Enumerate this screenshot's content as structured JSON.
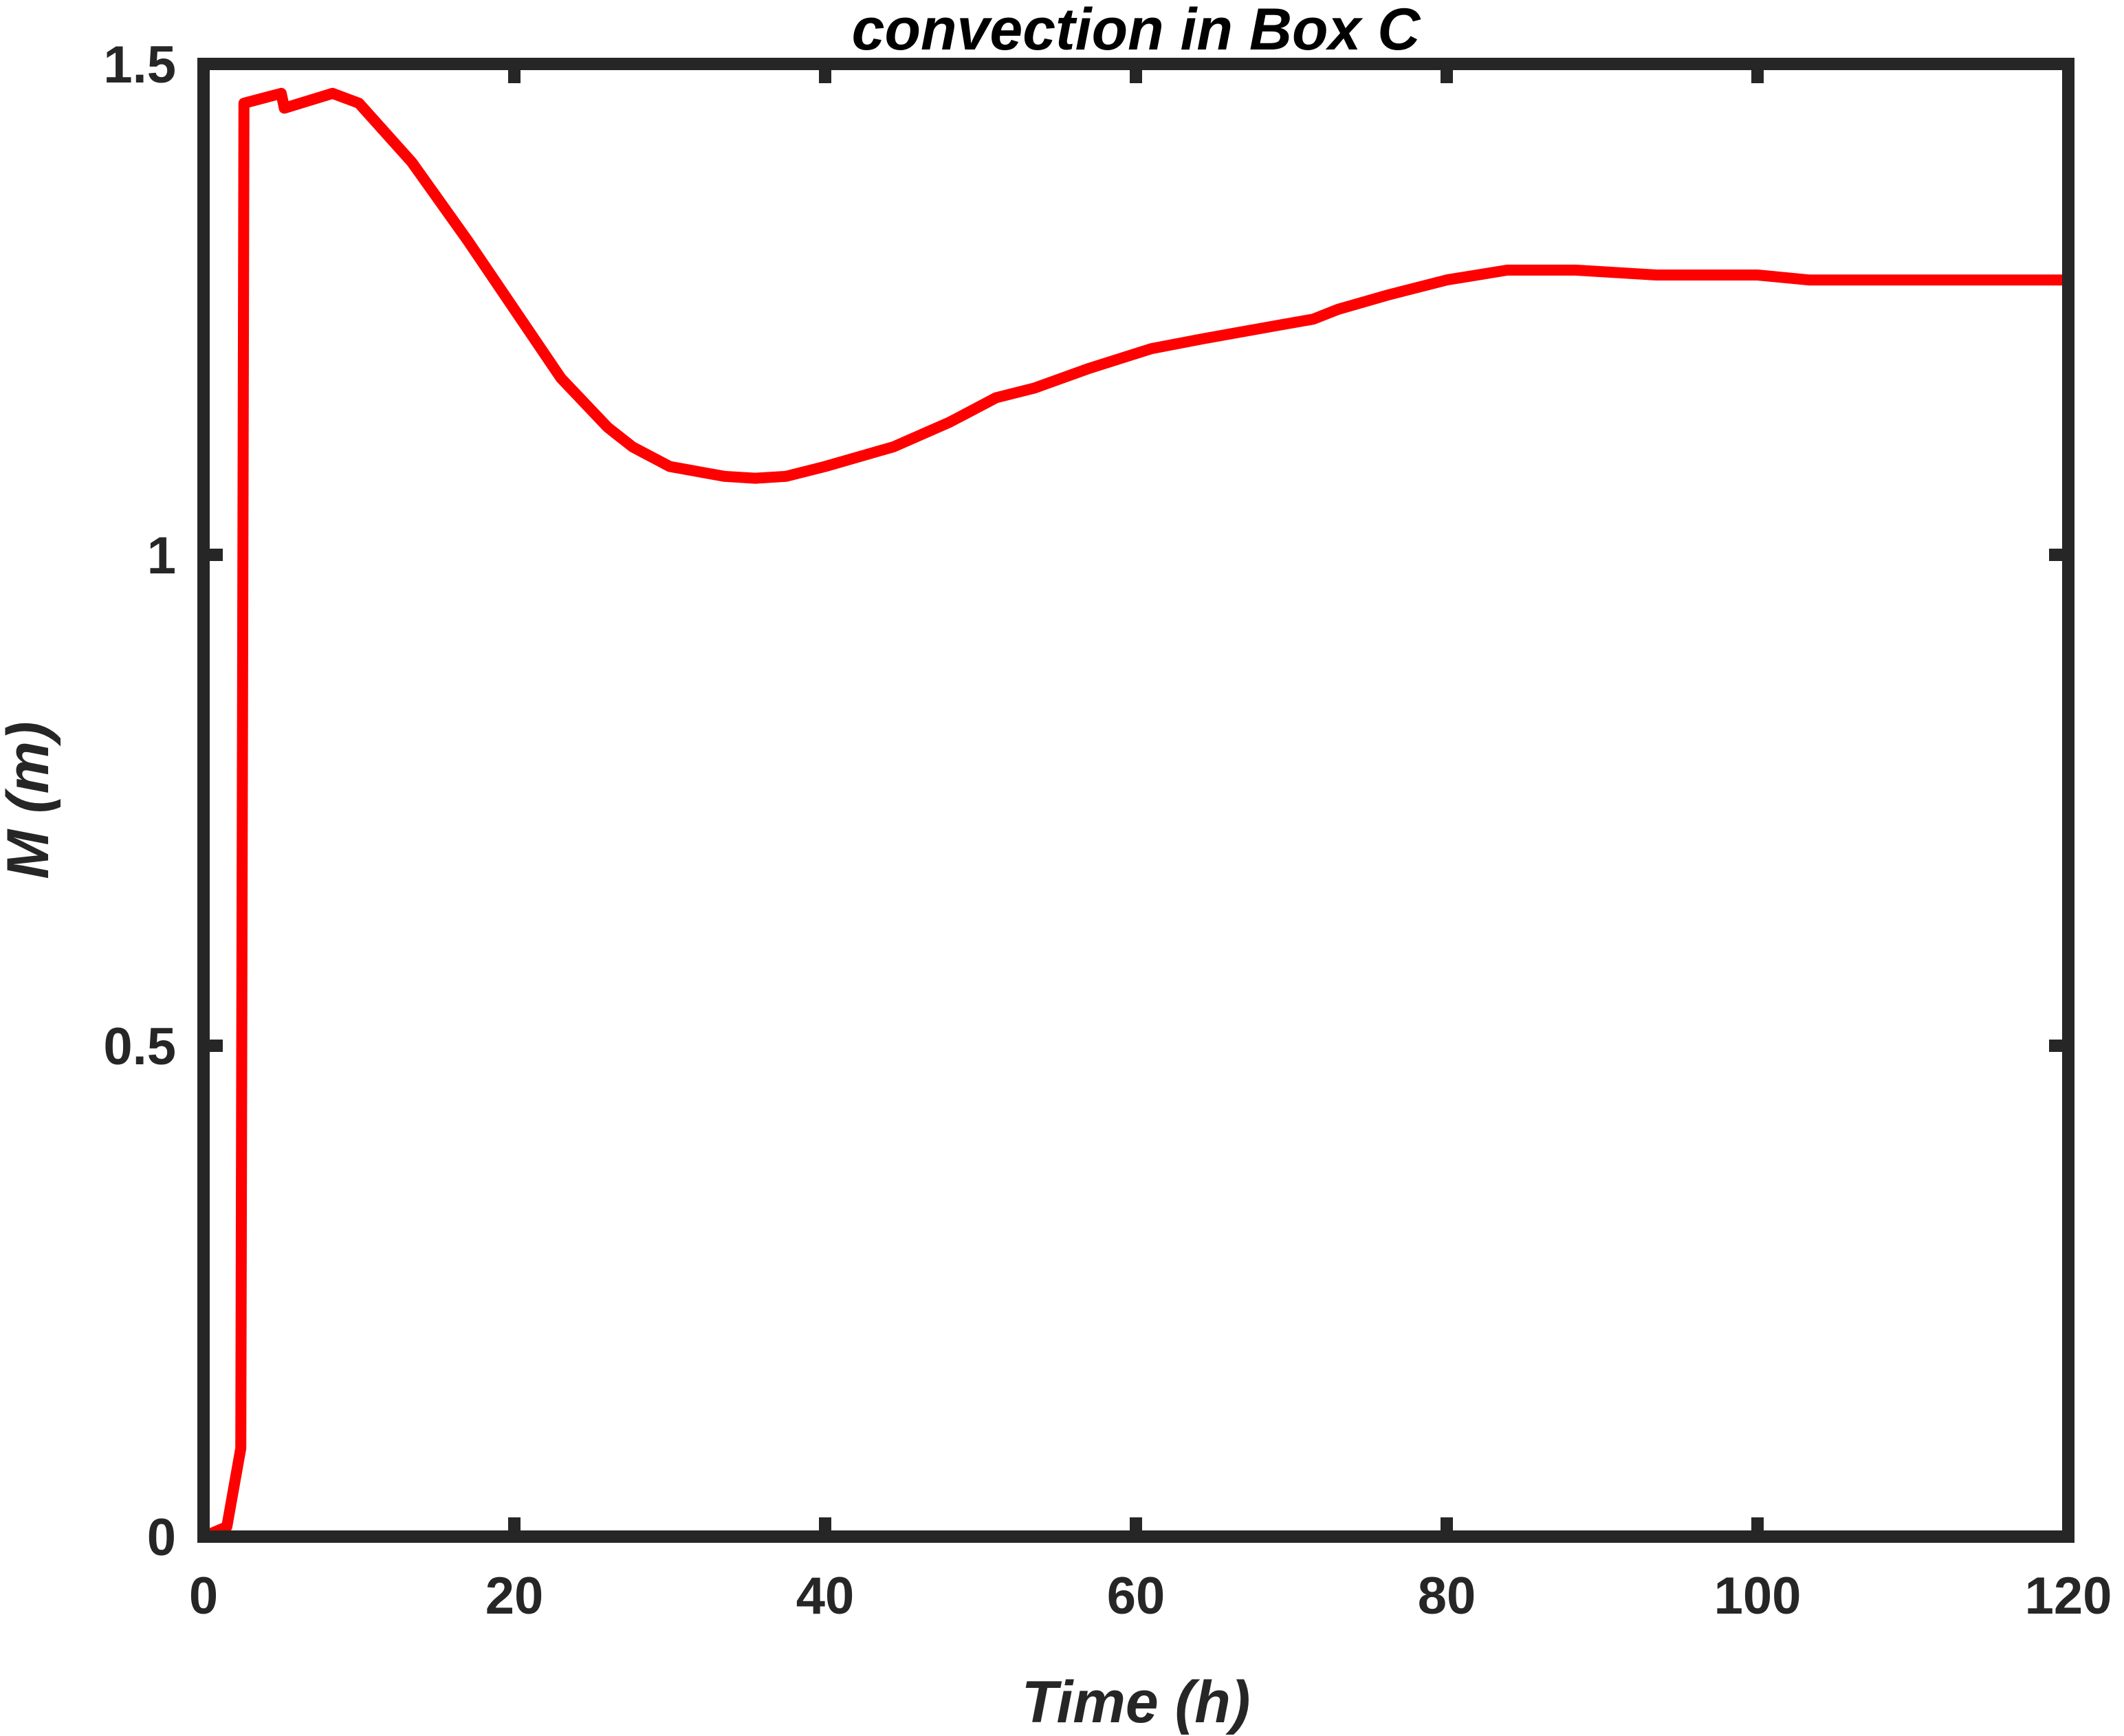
{
  "chart_data": {
    "type": "line",
    "title": "convection in Box C",
    "xlabel": "Time (h)",
    "ylabel": "M (m)",
    "xlim": [
      0,
      120
    ],
    "ylim": [
      0,
      1.5
    ],
    "xticks": [
      0,
      20,
      40,
      60,
      80,
      100,
      120
    ],
    "yticks": [
      0,
      0.5,
      1,
      1.5
    ],
    "ytick_labels": [
      "0",
      "0.5",
      "1",
      "1.5"
    ],
    "grid": false,
    "colors": {
      "series": "#ff0000",
      "axes": "#262626"
    },
    "series": [
      {
        "x": [
          0,
          1.5,
          2.4,
          2.6,
          5,
          5.2,
          8.3,
          10,
          13.4,
          17,
          20,
          23,
          26,
          27.6,
          30,
          33.5,
          35.5,
          37.5,
          40,
          44.4,
          48,
          51,
          53.5,
          57,
          61,
          64.3,
          69.6,
          71.4,
          73,
          76.3,
          80,
          83.9,
          88.3,
          93.5,
          100,
          103.3,
          106,
          120
        ],
        "values": [
          0,
          0.01,
          0.09,
          1.46,
          1.47,
          1.455,
          1.47,
          1.46,
          1.4,
          1.32,
          1.25,
          1.18,
          1.13,
          1.11,
          1.09,
          1.08,
          1.078,
          1.08,
          1.09,
          1.11,
          1.135,
          1.16,
          1.17,
          1.19,
          1.21,
          1.22,
          1.235,
          1.24,
          1.25,
          1.265,
          1.28,
          1.29,
          1.29,
          1.285,
          1.285,
          1.28,
          1.28,
          1.28
        ]
      }
    ]
  }
}
